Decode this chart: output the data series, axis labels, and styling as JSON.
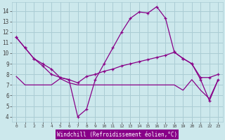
{
  "xlabel": "Windchill (Refroidissement éolien,°C)",
  "bg_color": "#cce8ec",
  "grid_color": "#aaccd4",
  "line_color": "#880088",
  "ylim": [
    3.5,
    14.8
  ],
  "xlim": [
    -0.5,
    23.5
  ],
  "yticks": [
    4,
    5,
    6,
    7,
    8,
    9,
    10,
    11,
    12,
    13,
    14
  ],
  "xticks": [
    0,
    1,
    2,
    3,
    4,
    5,
    6,
    7,
    8,
    9,
    10,
    11,
    12,
    13,
    14,
    15,
    16,
    17,
    18,
    19,
    20,
    21,
    22,
    23
  ],
  "curve1_x": [
    0,
    1,
    2,
    3,
    4,
    5,
    6,
    7,
    8,
    9,
    10,
    11,
    12,
    13,
    14,
    15,
    16,
    17,
    18,
    19,
    20,
    21,
    22,
    23
  ],
  "curve1_y": [
    11.5,
    10.5,
    9.5,
    9.0,
    8.5,
    7.7,
    7.5,
    4.0,
    4.7,
    7.5,
    9.0,
    10.5,
    12.0,
    13.3,
    13.9,
    13.8,
    14.4,
    13.3,
    10.1,
    9.5,
    9.0,
    7.5,
    5.5,
    7.5
  ],
  "curve2_x": [
    0,
    1,
    2,
    3,
    4,
    5,
    6,
    7,
    8,
    9,
    10,
    11,
    12,
    13,
    14,
    15,
    16,
    17,
    18,
    19,
    20,
    21,
    22,
    23
  ],
  "curve2_y": [
    11.5,
    10.5,
    9.5,
    8.8,
    8.0,
    7.7,
    7.5,
    7.2,
    7.8,
    8.0,
    8.3,
    8.5,
    8.8,
    9.0,
    9.2,
    9.4,
    9.6,
    9.8,
    10.1,
    9.5,
    9.0,
    7.7,
    7.7,
    8.0
  ],
  "curve3_x": [
    0,
    1,
    2,
    3,
    4,
    5,
    6,
    7,
    8,
    9,
    10,
    11,
    12,
    13,
    14,
    15,
    16,
    17,
    18,
    19,
    20,
    21,
    22,
    23
  ],
  "curve3_y": [
    7.8,
    7.0,
    7.0,
    7.0,
    7.0,
    7.6,
    7.2,
    7.0,
    7.0,
    7.0,
    7.0,
    7.0,
    7.0,
    7.0,
    7.0,
    7.0,
    7.0,
    7.0,
    7.0,
    6.5,
    7.5,
    6.5,
    5.7,
    7.5
  ]
}
